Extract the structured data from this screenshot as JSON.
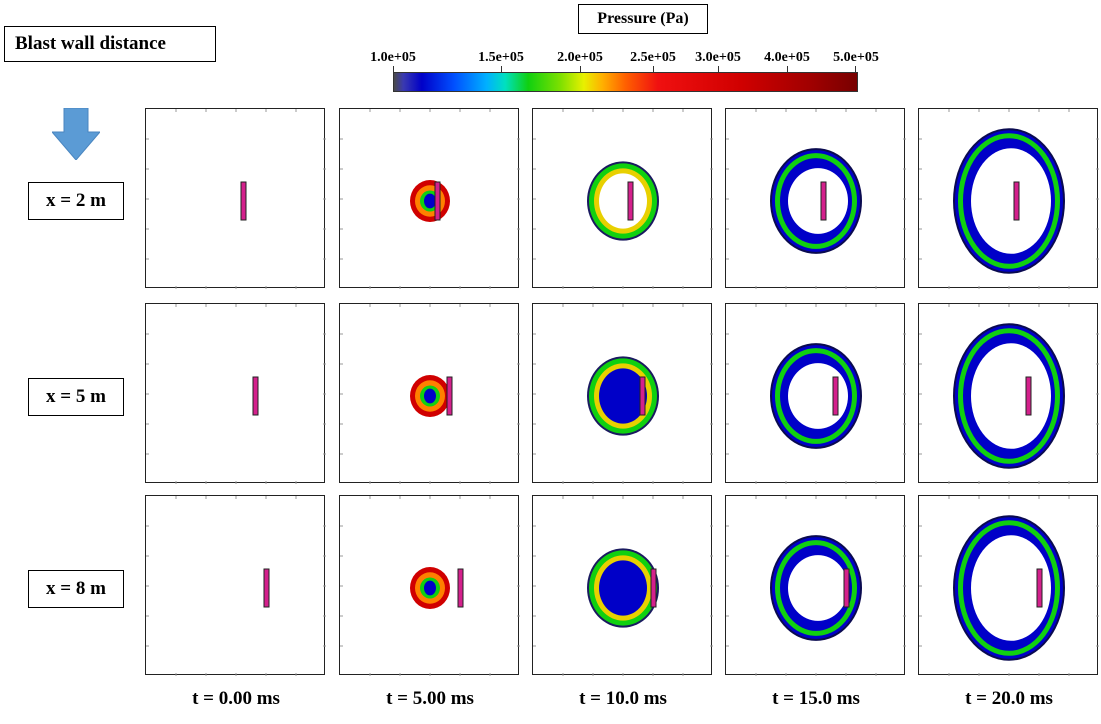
{
  "title": "Blast wall  distance",
  "colorbar": {
    "title": "Pressure (Pa)",
    "ticks": [
      "1.0e+05",
      "1.5e+05",
      "2.0e+05",
      "2.5e+05",
      "3.0e+05",
      "4.0e+05",
      "5.0e+05"
    ],
    "colors": {
      "low": "#0000c8",
      "mid": "#10d010",
      "high": "#d00000",
      "wall": "#d4208c"
    }
  },
  "rows": [
    {
      "label": "x = 2 m"
    },
    {
      "label": "x = 5 m"
    },
    {
      "label": "x = 8 m"
    }
  ],
  "times": [
    "t = 0.00 ms",
    "t = 5.00 ms",
    "t = 10.0 ms",
    "t = 15.0 ms",
    "t = 20.0 ms"
  ]
}
